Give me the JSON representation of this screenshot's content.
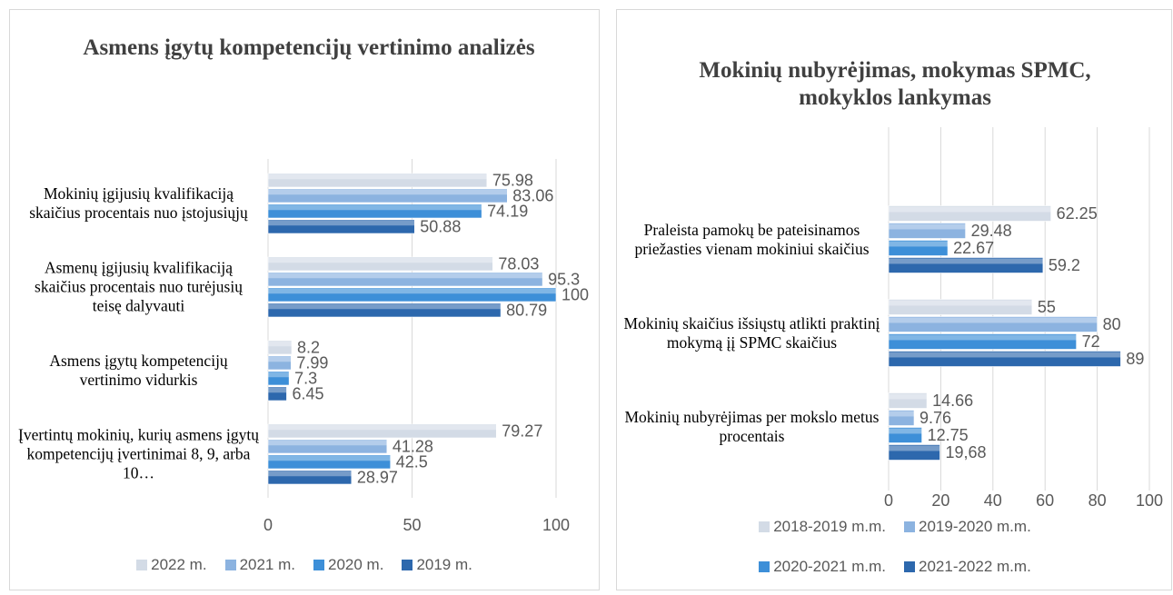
{
  "chart_data": [
    {
      "type": "bar",
      "orientation": "horizontal",
      "title": "Asmens įgytų kompetencijų vertinimo analizės",
      "categories": [
        "Mokinių įgijusių kvalifikaciją skaičius procentais nuo įstojusiųjų",
        "Asmenų įgijusių kvalifikaciją skaičius procentais nuo turėjusių teisę dalyvauti",
        "Asmens įgytų kompetencijų vertinimo vidurkis",
        "Įvertintų mokinių, kurių asmens įgytų kompetencijų įvertinimai 8, 9, arba 10…"
      ],
      "series": [
        {
          "name": "2022 m.",
          "color": "#d3dbe6",
          "values": [
            75.98,
            78.03,
            8.2,
            79.27
          ]
        },
        {
          "name": "2021 m.",
          "color": "#8cb3e0",
          "values": [
            83.06,
            95.3,
            7.99,
            41.28
          ]
        },
        {
          "name": "2020 m.",
          "color": "#3d8fd8",
          "values": [
            74.19,
            100,
            7.3,
            42.5
          ]
        },
        {
          "name": "2019 m.",
          "color": "#2d68ad",
          "values": [
            50.88,
            80.79,
            6.45,
            28.97
          ]
        }
      ],
      "xlim": [
        0,
        100
      ],
      "xticks": [
        0,
        50,
        100
      ],
      "grid": true,
      "legend": "bottom"
    },
    {
      "type": "bar",
      "orientation": "horizontal",
      "title": "Mokinių nubyrėjimas, mokymas SPMC, mokyklos lankymas",
      "categories": [
        "Praleista pamokų be pateisinamos priežasties vienam mokiniui skaičius",
        "Mokinių skaičius išsiųstų atlikti praktinį mokymą įį SPMC skaičius",
        "Mokinių nubyrėjimas per mokslo metus procentais"
      ],
      "series": [
        {
          "name": "2018-2019 m.m.",
          "color": "#d3dbe6",
          "values": [
            62.25,
            55,
            14.66
          ]
        },
        {
          "name": "2019-2020 m.m.",
          "color": "#8cb3e0",
          "values": [
            29.48,
            80,
            9.76
          ]
        },
        {
          "name": "2020-2021 m.m.",
          "color": "#3d8fd8",
          "values": [
            22.67,
            72,
            12.75
          ]
        },
        {
          "name": "2021-2022 m.m.",
          "color": "#2d68ad",
          "values": [
            59.2,
            89,
            19.68
          ],
          "value_labels": [
            "59.2",
            "89",
            "19,68"
          ]
        }
      ],
      "xlim": [
        0,
        100
      ],
      "xticks": [
        0,
        20,
        40,
        60,
        80,
        100
      ],
      "grid": true,
      "legend": "bottom"
    }
  ]
}
